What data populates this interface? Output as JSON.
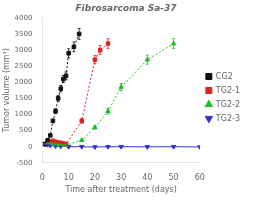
{
  "chart_data": {
    "type": "line",
    "title": "Fibrosarcoma Sa-37",
    "xlabel": "Time after treatment (days)",
    "ylabel": "Tumor volume (mm³)",
    "xlim": [
      0,
      60
    ],
    "ylim": [
      -500,
      4000
    ],
    "xticks": [
      0,
      10,
      20,
      30,
      40,
      50,
      60
    ],
    "yticks": [
      -500,
      0,
      500,
      1000,
      1500,
      2000,
      2500,
      3000,
      3500,
      4000
    ],
    "grid": false,
    "legend": "right",
    "series": [
      {
        "name": "CG2",
        "color": "#111111",
        "marker": "square",
        "line_style": "dotted",
        "x": [
          1,
          2,
          3,
          4,
          5,
          6,
          7,
          8,
          9,
          10,
          12,
          14
        ],
        "values": [
          80,
          200,
          350,
          800,
          1100,
          1500,
          1800,
          2100,
          2200,
          2900,
          3100,
          3500
        ],
        "errors": [
          15,
          25,
          35,
          55,
          75,
          90,
          100,
          110,
          120,
          140,
          150,
          170
        ]
      },
      {
        "name": "TG2-1",
        "color": "#dd2222",
        "marker": "square",
        "line_style": "dotted",
        "x": [
          1,
          2,
          3,
          4,
          5,
          6,
          7,
          8,
          9,
          15,
          20,
          22,
          25
        ],
        "values": [
          80,
          120,
          150,
          180,
          150,
          130,
          120,
          100,
          80,
          800,
          2700,
          3000,
          3200
        ],
        "errors": [
          12,
          18,
          20,
          22,
          20,
          18,
          15,
          12,
          10,
          70,
          130,
          140,
          150
        ]
      },
      {
        "name": "TG2-2",
        "color": "#22bb22",
        "marker": "triangle-up",
        "line_style": "dotted",
        "x": [
          1,
          2,
          3,
          4,
          5,
          6,
          7,
          8,
          9,
          15,
          20,
          25,
          30,
          40,
          50
        ],
        "values": [
          80,
          100,
          100,
          100,
          80,
          70,
          60,
          50,
          50,
          200,
          600,
          1100,
          1850,
          2700,
          3200
        ],
        "errors": [
          12,
          15,
          14,
          14,
          12,
          10,
          10,
          8,
          8,
          20,
          55,
          90,
          110,
          140,
          150
        ]
      },
      {
        "name": "TG2-3",
        "color": "#3333cc",
        "marker": "triangle-down",
        "line_style": "solid",
        "x": [
          1,
          2,
          3,
          5,
          7,
          10,
          15,
          20,
          25,
          30,
          40,
          50,
          60
        ],
        "values": [
          80,
          60,
          40,
          20,
          10,
          0,
          0,
          -10,
          0,
          0,
          -5,
          0,
          -10
        ],
        "errors": [
          10,
          8,
          6,
          5,
          4,
          3,
          3,
          3,
          3,
          3,
          3,
          3,
          3
        ]
      }
    ]
  }
}
